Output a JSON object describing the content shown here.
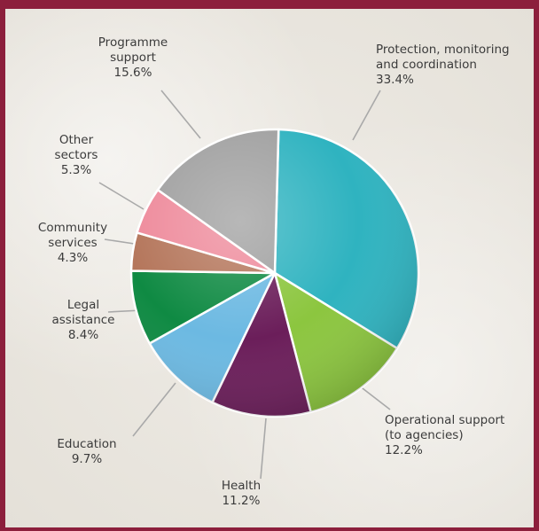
{
  "chart_data": {
    "type": "pie",
    "title": "",
    "slices": [
      {
        "label_lines": [
          "Protection, monitoring",
          "and coordination"
        ],
        "value_text": "33.4%",
        "value": 33.4,
        "color": "#2fb3c0"
      },
      {
        "label_lines": [
          "Operational support",
          "(to agencies)"
        ],
        "value_text": "12.2%",
        "value": 12.2,
        "color": "#8cc63f"
      },
      {
        "label_lines": [
          "Health"
        ],
        "value_text": "11.2%",
        "value": 11.2,
        "color": "#6b1e5a"
      },
      {
        "label_lines": [
          "Education"
        ],
        "value_text": "9.7%",
        "value": 9.7,
        "color": "#6cb9e2"
      },
      {
        "label_lines": [
          "Legal",
          "assistance"
        ],
        "value_text": "8.4%",
        "value": 8.4,
        "color": "#0f8a43"
      },
      {
        "label_lines": [
          "Community",
          "services"
        ],
        "value_text": "4.3%",
        "value": 4.3,
        "color": "#b4755a"
      },
      {
        "label_lines": [
          "Other",
          "sectors"
        ],
        "value_text": "5.3%",
        "value": 5.3,
        "color": "#ee8a9b"
      },
      {
        "label_lines": [
          "Programme",
          "support"
        ],
        "value_text": "15.6%",
        "value": 15.6,
        "color": "#a0a0a0"
      }
    ]
  },
  "colors": {
    "frame_accent": "#8c1f3c",
    "leader_line": "#a9a9a9",
    "label_text": "#3b3b3b"
  }
}
